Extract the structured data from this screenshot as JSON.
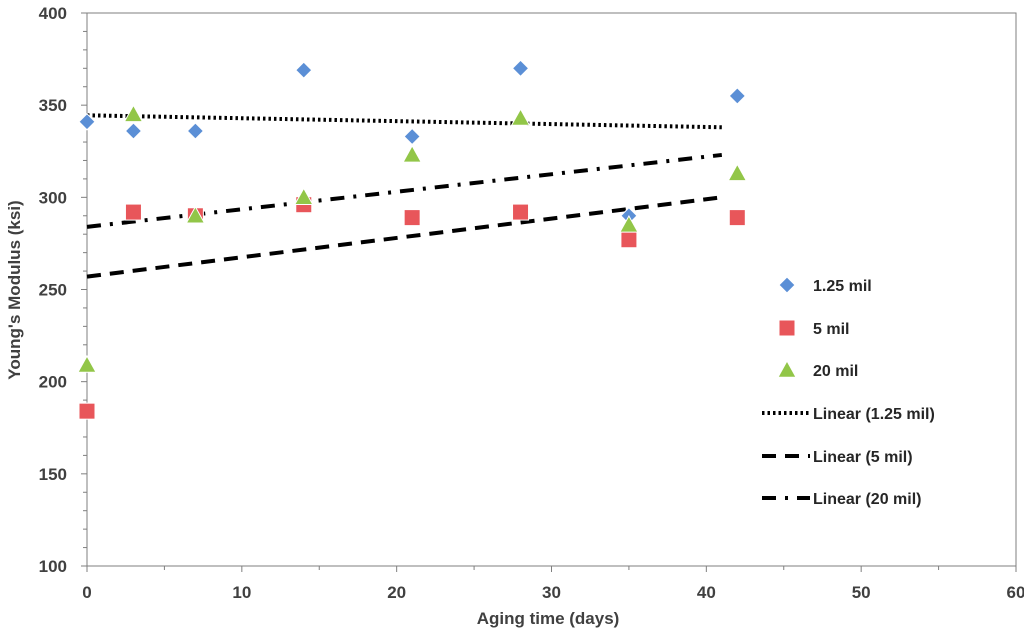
{
  "chart_data": {
    "type": "scatter",
    "xlabel": "Aging time (days)",
    "ylabel": "Young's Modulus (ksi)",
    "xlim": [
      0,
      60
    ],
    "ylim": [
      100,
      400
    ],
    "xticks": [
      0,
      10,
      20,
      30,
      40,
      50,
      60
    ],
    "yticks": [
      100,
      150,
      200,
      250,
      300,
      350,
      400
    ],
    "xtick_labels": [
      "0",
      "10",
      "20",
      "30",
      "40",
      "50",
      "60"
    ],
    "ytick_labels": [
      "100",
      "150",
      "200",
      "250",
      "300",
      "350",
      "400"
    ],
    "grid": false,
    "legend_position": "right",
    "series": [
      {
        "name": "1.25 mil",
        "marker": "diamond",
        "color": "#5b8fd6",
        "x": [
          0,
          3,
          7,
          14,
          21,
          28,
          35,
          42
        ],
        "y": [
          341,
          336,
          336,
          369,
          333,
          370,
          290,
          355
        ]
      },
      {
        "name": "5 mil",
        "marker": "square",
        "color": "#e8565a",
        "x": [
          0,
          3,
          7,
          14,
          21,
          28,
          35,
          42
        ],
        "y": [
          184,
          292,
          290,
          296,
          289,
          292,
          277,
          289
        ]
      },
      {
        "name": "20 mil",
        "marker": "triangle",
        "color": "#92c648",
        "x": [
          0,
          3,
          7,
          14,
          21,
          28,
          35,
          42
        ],
        "y": [
          209,
          345,
          290,
          300,
          323,
          343,
          285,
          313
        ]
      }
    ],
    "trendlines": [
      {
        "name": "Linear (1.25 mil)",
        "style": "dotted",
        "x": [
          0,
          41
        ],
        "y": [
          344.5,
          338
        ]
      },
      {
        "name": "Linear (5 mil)",
        "style": "dashed",
        "x": [
          0,
          41
        ],
        "y": [
          257,
          300
        ]
      },
      {
        "name": "Linear (20 mil)",
        "style": "dash-dot",
        "x": [
          0,
          41
        ],
        "y": [
          284,
          323
        ]
      }
    ]
  }
}
